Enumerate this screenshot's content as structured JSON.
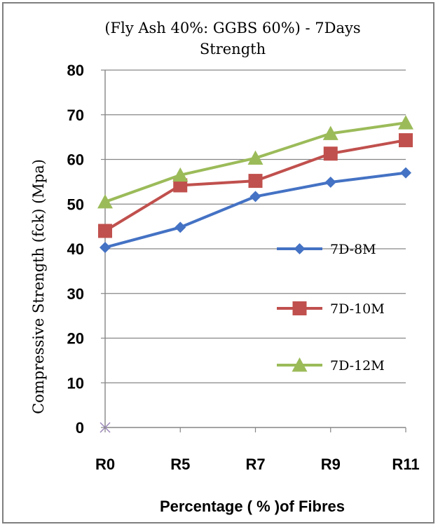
{
  "chart_data": {
    "type": "line",
    "title_lines": [
      "(Fly Ash 40%: GGBS 60%) - 7Days",
      "Strength"
    ],
    "xlabel": "Percentage  ( % )of Fibres",
    "ylabel": "Compressive  Strength (fck)   (Mpa)",
    "categories": [
      "R0",
      "R5",
      "R7",
      "R9",
      "R11"
    ],
    "ylim": [
      0,
      80
    ],
    "yticks": [
      "0",
      "10",
      "20",
      "30",
      "40",
      "50",
      "60",
      "70",
      "80"
    ],
    "grid": true,
    "legend_position": "right",
    "series": [
      {
        "name": "7D-8M",
        "color": "#4472c4",
        "marker": "diamond",
        "values": [
          40.3,
          44.8,
          51.7,
          54.9,
          57.0
        ]
      },
      {
        "name": "7D-10M",
        "color": "#c0504d",
        "marker": "square",
        "values": [
          44.0,
          54.2,
          55.2,
          61.3,
          64.3
        ]
      },
      {
        "name": "7D-12M",
        "color": "#9bbb59",
        "marker": "triangle",
        "values": [
          50.5,
          56.5,
          60.3,
          65.8,
          68.2
        ]
      }
    ]
  }
}
